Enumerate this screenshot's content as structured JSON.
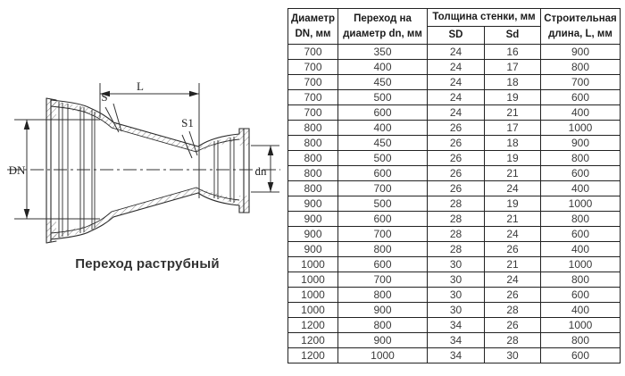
{
  "diagram": {
    "caption": "Переход раструбный",
    "labels": {
      "L": "L",
      "S": "S",
      "S1": "S1",
      "DN": "DN",
      "dn": "dn"
    }
  },
  "table": {
    "header": {
      "diameter": "Диаметр DN, мм",
      "transition": "Переход на диаметр dn, мм",
      "wall": "Толщина стенки, мм",
      "sd_outer": "SD",
      "sd_inner": "Sd",
      "length": "Строительная длина, L, мм"
    },
    "rows": [
      [
        700,
        350,
        24,
        16,
        900
      ],
      [
        700,
        400,
        24,
        17,
        800
      ],
      [
        700,
        450,
        24,
        18,
        700
      ],
      [
        700,
        500,
        24,
        19,
        600
      ],
      [
        700,
        600,
        24,
        21,
        400
      ],
      [
        800,
        400,
        26,
        17,
        1000
      ],
      [
        800,
        450,
        26,
        18,
        900
      ],
      [
        800,
        500,
        26,
        19,
        800
      ],
      [
        800,
        600,
        26,
        21,
        600
      ],
      [
        800,
        700,
        26,
        24,
        400
      ],
      [
        900,
        500,
        28,
        19,
        1000
      ],
      [
        900,
        600,
        28,
        21,
        800
      ],
      [
        900,
        700,
        28,
        24,
        600
      ],
      [
        900,
        800,
        28,
        26,
        400
      ],
      [
        1000,
        600,
        30,
        21,
        1000
      ],
      [
        1000,
        700,
        30,
        24,
        800
      ],
      [
        1000,
        800,
        30,
        26,
        600
      ],
      [
        1000,
        900,
        30,
        28,
        400
      ],
      [
        1200,
        800,
        34,
        26,
        1000
      ],
      [
        1200,
        900,
        34,
        28,
        800
      ],
      [
        1200,
        1000,
        34,
        30,
        600
      ]
    ]
  },
  "colors": {
    "background": "#ffffff",
    "table_border": "#222222",
    "table_text": "#3a3a3a",
    "header_text": "#1c1c1c",
    "drawing_line": "#2b2b2b"
  }
}
